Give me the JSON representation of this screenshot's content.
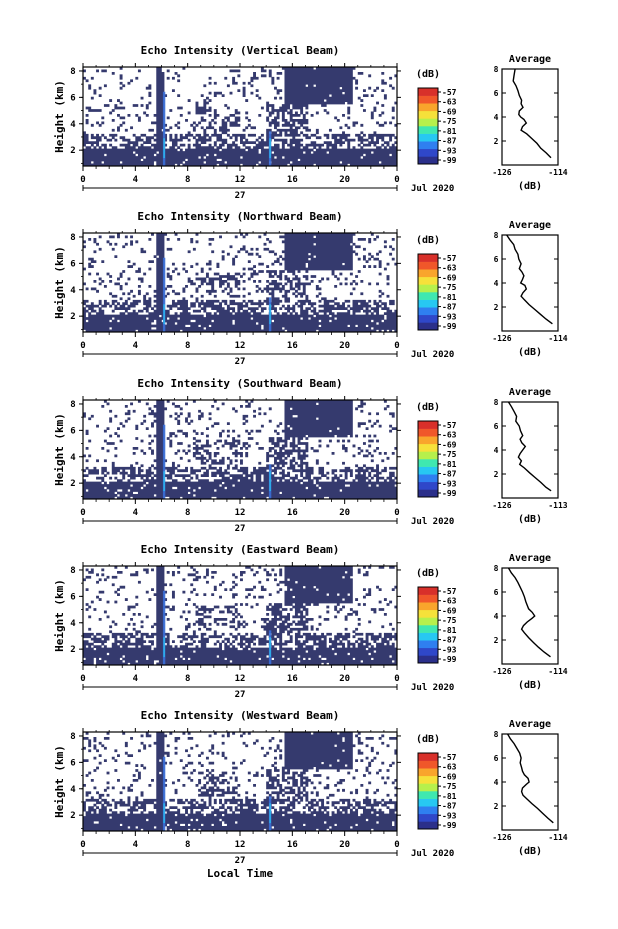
{
  "figure": {
    "xlabel": "Local Time",
    "ylabel": "Height (km)",
    "day_label": "27",
    "date_label": "Jul 2020",
    "colorbar_unit": "(dB)",
    "colorbar_ticks": [
      "-57",
      "-63",
      "-69",
      "-75",
      "-81",
      "-87",
      "-93",
      "-99"
    ],
    "colorbar_colors": [
      "#2b2f8a",
      "#2f47c9",
      "#2f7ff0",
      "#27c8f2",
      "#3fe8b0",
      "#b6f04c",
      "#f6e13a",
      "#f9a52c",
      "#f0572a",
      "#d8302a"
    ],
    "fill_color": "#353a6e",
    "x_ticks": [
      "0",
      "4",
      "8",
      "12",
      "16",
      "20",
      "0"
    ],
    "y_ticks": [
      "2",
      "4",
      "6",
      "8"
    ],
    "profile_title": "Average",
    "profile_xlabel": "(dB)"
  },
  "chart_data": [
    {
      "type": "heatmap",
      "title": "Echo Intensity (Vertical Beam)",
      "xlim": [
        0,
        24
      ],
      "ylim": [
        0.8,
        8.3
      ],
      "colorbar_range": [
        -99,
        -57
      ],
      "profile": {
        "type": "line",
        "title": "Average",
        "xlim": [
          -126,
          -114
        ],
        "xtick_labels": [
          "-126",
          "-114"
        ],
        "ylim": [
          0,
          8
        ],
        "x": [
          -123.2,
          -123.4,
          -123.6,
          -123.0,
          -122.6,
          -122.3,
          -121.8,
          -121.9,
          -121.5,
          -122.3,
          -122.4,
          -122.0,
          -121.3,
          -120.8,
          -121.6,
          -121.9,
          -120.7,
          -119.6,
          -118.5,
          -117.7,
          -116.5,
          -115.5
        ],
        "y": [
          8.0,
          7.5,
          7.0,
          6.6,
          6.2,
          5.8,
          5.4,
          5.1,
          4.8,
          4.5,
          4.2,
          4.0,
          3.8,
          3.5,
          3.2,
          2.9,
          2.6,
          2.2,
          1.8,
          1.4,
          1.0,
          0.6
        ]
      }
    },
    {
      "type": "heatmap",
      "title": "Echo Intensity (Northward Beam)",
      "xlim": [
        0,
        24
      ],
      "ylim": [
        0.8,
        8.3
      ],
      "colorbar_range": [
        -99,
        -57
      ],
      "profile": {
        "type": "line",
        "title": "Average",
        "xlim": [
          -126,
          -114
        ],
        "xtick_labels": [
          "-126",
          "-114"
        ],
        "ylim": [
          0,
          8
        ],
        "x": [
          -125.0,
          -124.3,
          -123.5,
          -123.2,
          -122.6,
          -122.4,
          -121.9,
          -122.3,
          -121.7,
          -121.3,
          -121.6,
          -122.0,
          -121.1,
          -120.8,
          -121.5,
          -121.9,
          -121.2,
          -120.2,
          -119.0,
          -117.8,
          -116.6,
          -115.2
        ],
        "y": [
          8.0,
          7.6,
          7.2,
          6.8,
          6.4,
          6.0,
          5.6,
          5.2,
          4.9,
          4.6,
          4.3,
          4.0,
          3.8,
          3.5,
          3.2,
          2.9,
          2.6,
          2.2,
          1.8,
          1.4,
          1.0,
          0.6
        ]
      }
    },
    {
      "type": "heatmap",
      "title": "Echo Intensity (Southward Beam)",
      "xlim": [
        0,
        24
      ],
      "ylim": [
        0.8,
        8.3
      ],
      "colorbar_range": [
        -99,
        -57
      ],
      "profile": {
        "type": "line",
        "title": "Average",
        "xlim": [
          -126,
          -113
        ],
        "xtick_labels": [
          "-126",
          "-113"
        ],
        "ylim": [
          0,
          8
        ],
        "x": [
          -124.5,
          -123.8,
          -123.2,
          -122.6,
          -122.8,
          -122.0,
          -121.7,
          -121.2,
          -121.8,
          -121.4,
          -120.6,
          -121.2,
          -121.8,
          -122.2,
          -121.5,
          -121.9,
          -120.8,
          -119.6,
          -118.3,
          -117.0,
          -115.8,
          -114.6
        ],
        "y": [
          8.0,
          7.6,
          7.2,
          6.8,
          6.4,
          6.0,
          5.6,
          5.2,
          4.9,
          4.6,
          4.3,
          4.0,
          3.7,
          3.4,
          3.1,
          2.8,
          2.5,
          2.1,
          1.7,
          1.3,
          0.9,
          0.6
        ]
      }
    },
    {
      "type": "heatmap",
      "title": "Echo Intensity (Eastward Beam)",
      "xlim": [
        0,
        24
      ],
      "ylim": [
        0.8,
        8.3
      ],
      "colorbar_range": [
        -99,
        -57
      ],
      "profile": {
        "type": "line",
        "title": "Average",
        "xlim": [
          -126,
          -114
        ],
        "xtick_labels": [
          "-126",
          "-114"
        ],
        "ylim": [
          0,
          8
        ],
        "x": [
          -124.6,
          -124.0,
          -123.2,
          -122.6,
          -122.1,
          -121.6,
          -121.2,
          -120.9,
          -120.6,
          -120.3,
          -119.5,
          -119.0,
          -119.6,
          -120.6,
          -121.4,
          -121.8,
          -121.2,
          -120.3,
          -119.3,
          -118.2,
          -117.0,
          -115.6
        ],
        "y": [
          8.0,
          7.6,
          7.2,
          6.8,
          6.4,
          6.0,
          5.6,
          5.2,
          4.9,
          4.6,
          4.3,
          4.0,
          3.8,
          3.5,
          3.2,
          2.9,
          2.6,
          2.2,
          1.8,
          1.4,
          1.0,
          0.6
        ]
      }
    },
    {
      "type": "heatmap",
      "title": "Echo Intensity (Westward Beam)",
      "xlim": [
        0,
        24
      ],
      "ylim": [
        0.8,
        8.3
      ],
      "colorbar_range": [
        -99,
        -57
      ],
      "profile": {
        "type": "line",
        "title": "Average",
        "xlim": [
          -126,
          -114
        ],
        "xtick_labels": [
          "-126",
          "-114"
        ],
        "ylim": [
          0,
          8
        ],
        "x": [
          -124.8,
          -124.2,
          -123.4,
          -122.8,
          -122.2,
          -121.9,
          -122.1,
          -121.8,
          -121.6,
          -121.2,
          -120.4,
          -120.2,
          -120.8,
          -121.6,
          -121.8,
          -121.5,
          -120.7,
          -119.6,
          -118.4,
          -117.3,
          -116.2,
          -115.0
        ],
        "y": [
          8.0,
          7.6,
          7.2,
          6.8,
          6.4,
          6.0,
          5.6,
          5.2,
          4.9,
          4.6,
          4.3,
          4.0,
          3.8,
          3.5,
          3.2,
          2.9,
          2.6,
          2.2,
          1.8,
          1.4,
          1.0,
          0.6
        ]
      }
    }
  ]
}
